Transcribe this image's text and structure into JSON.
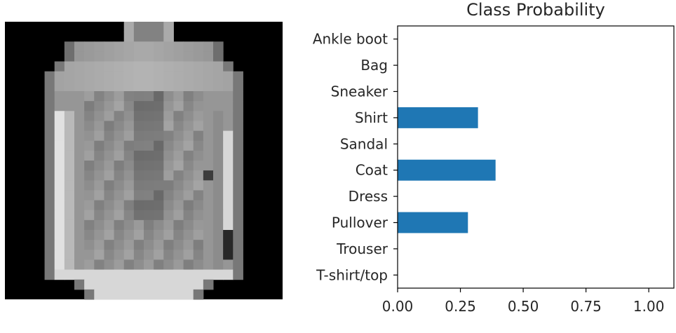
{
  "figure": {
    "image_panel": {
      "description_icon": "grayscale-garment-image",
      "pixel_grid_size": 28
    }
  },
  "chart_data": {
    "type": "bar",
    "orientation": "horizontal",
    "title": "Class Probability",
    "xlabel": "",
    "ylabel": "",
    "categories": [
      "T-shirt/top",
      "Trouser",
      "Pullover",
      "Dress",
      "Coat",
      "Sandal",
      "Shirt",
      "Sneaker",
      "Bag",
      "Ankle boot"
    ],
    "values": [
      0.0,
      0.0,
      0.28,
      0.0,
      0.39,
      0.0,
      0.32,
      0.0,
      0.0,
      0.0
    ],
    "xlim": [
      0.0,
      1.1
    ],
    "xticks": [
      0.0,
      0.25,
      0.5,
      0.75,
      1.0
    ],
    "xtick_labels": [
      "0.00",
      "0.25",
      "0.50",
      "0.75",
      "1.00"
    ],
    "bar_color": "#1f77b4",
    "grid": false
  }
}
